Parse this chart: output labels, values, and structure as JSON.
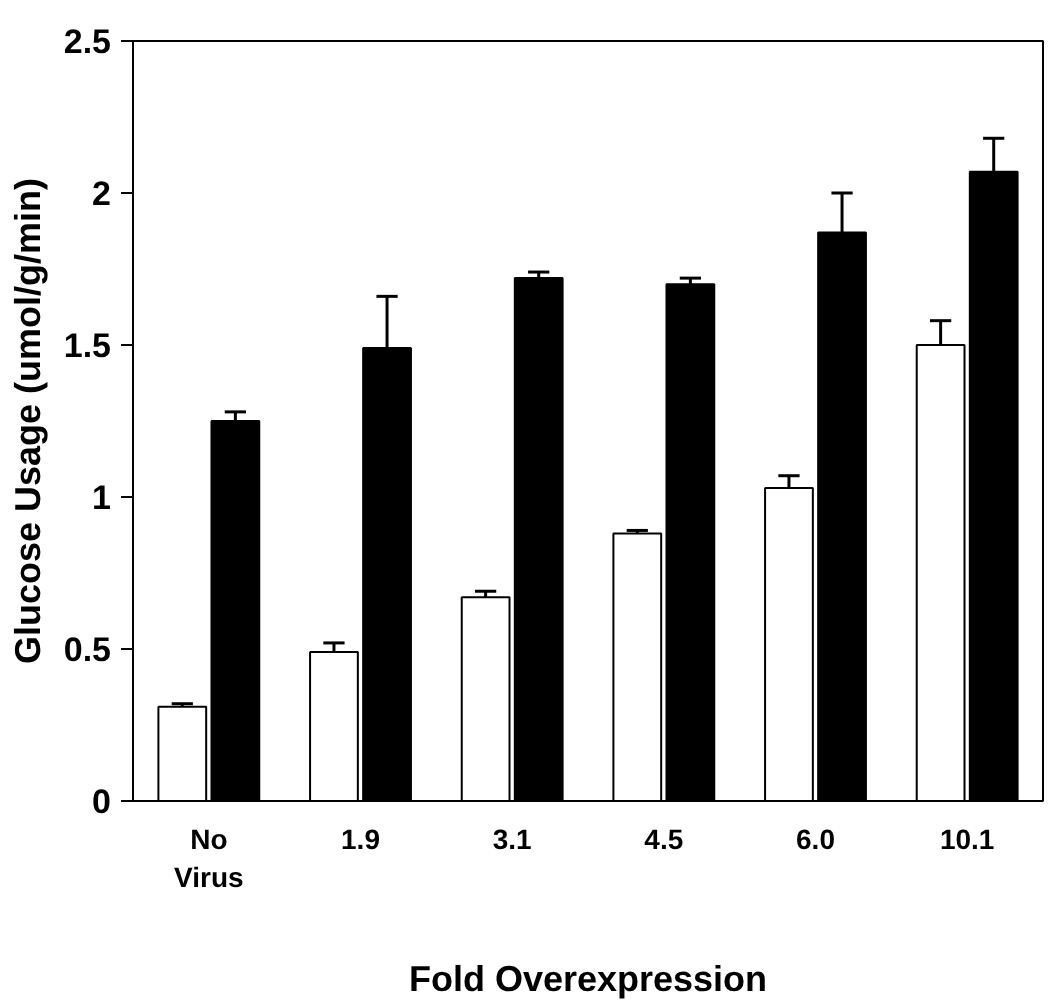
{
  "chart_data": {
    "type": "bar",
    "xlabel": "Fold Overexpression",
    "ylabel": "Glucose Usage (umol/g/min)",
    "categories": [
      "No Virus",
      "1.9",
      "3.1",
      "4.5",
      "6.0",
      "10.1"
    ],
    "series": [
      {
        "color": "#ffffff",
        "values": [
          0.31,
          0.49,
          0.67,
          0.88,
          1.03,
          1.5
        ],
        "errors": [
          [
            0.31,
            0.32
          ],
          [
            0.49,
            0.52
          ],
          [
            0.67,
            0.69
          ],
          [
            0.88,
            0.89
          ],
          [
            1.03,
            1.07
          ],
          [
            1.5,
            1.58
          ]
        ]
      },
      {
        "color": "#000000",
        "values": [
          1.25,
          1.49,
          1.72,
          1.7,
          1.87,
          2.07
        ],
        "errors": [
          [
            1.25,
            1.28
          ],
          [
            1.49,
            1.66
          ],
          [
            1.72,
            1.74
          ],
          [
            1.7,
            1.72
          ],
          [
            1.87,
            2.0
          ],
          [
            2.07,
            2.18
          ]
        ]
      }
    ],
    "ylim": [
      0,
      2.5
    ],
    "yticks": [
      0,
      {
        "value": 0.5,
        "label": "0.5"
      },
      1,
      {
        "value": 1.5,
        "label": "1.5"
      },
      2,
      {
        "value": 2.5,
        "label": "2.5"
      }
    ],
    "grid": false
  }
}
